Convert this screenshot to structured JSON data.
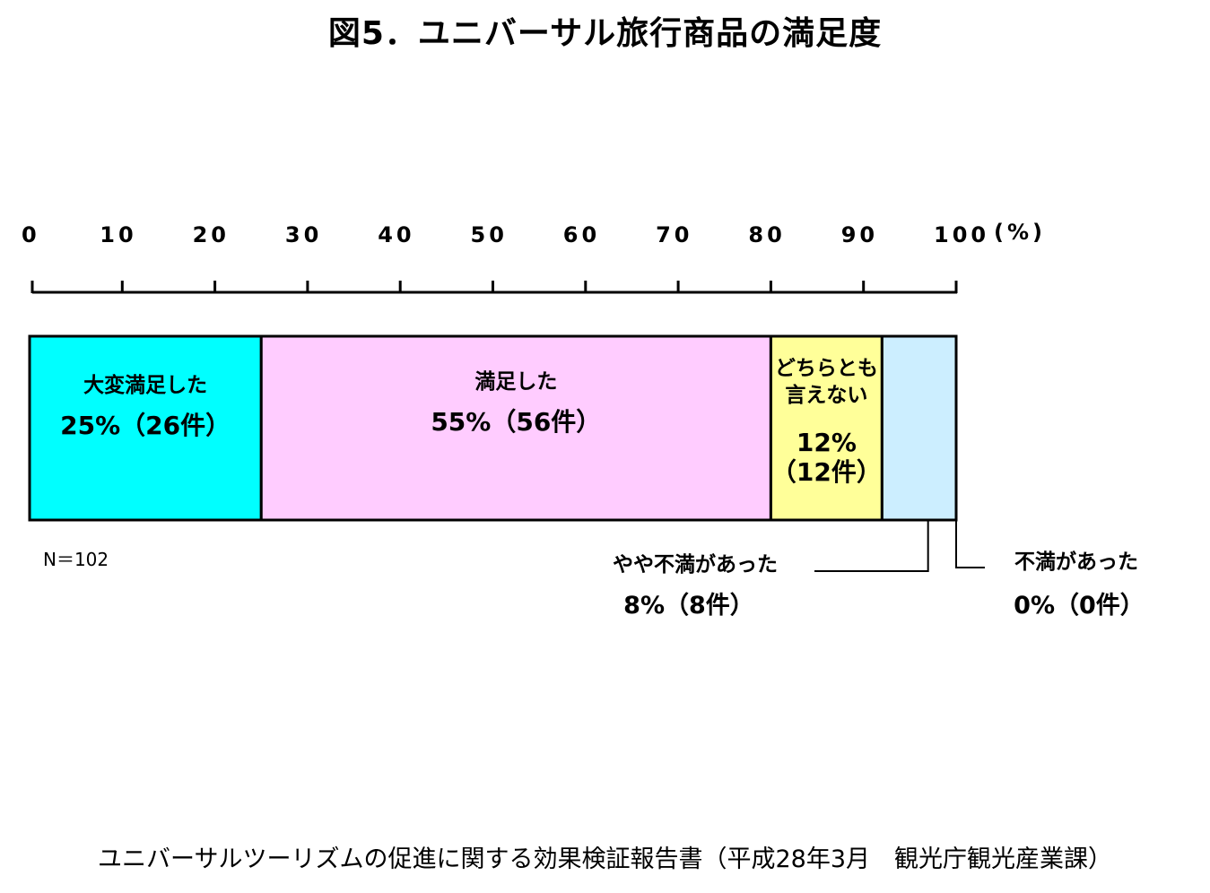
{
  "chart_data": {
    "type": "bar",
    "orientation": "horizontal-stacked-100",
    "title": "図5．ユニバーサル旅行商品の満足度",
    "ticks": [
      "0",
      "10",
      "20",
      "30",
      "40",
      "50",
      "60",
      "70",
      "80",
      "90",
      "100"
    ],
    "unit": "(%)",
    "xlim": [
      0,
      100
    ],
    "categories": [
      "大変満足した",
      "満足した",
      "どちらとも言えない",
      "やや不満があった",
      "不満があった"
    ],
    "series": [
      {
        "label": "大変満足した",
        "value": 25,
        "count_text": "25%（26件）",
        "color": "#00ffff",
        "placement": "inside"
      },
      {
        "label": "満足した",
        "value": 55,
        "count_text": "55%（56件）",
        "color": "#ffccff",
        "placement": "inside"
      },
      {
        "label_lines": [
          "どちらとも",
          "言えない"
        ],
        "label": "どちらとも言えない",
        "value": 12,
        "count_lines": [
          "12%",
          "（12件）"
        ],
        "color": "#ffff99",
        "placement": "inside"
      },
      {
        "label": "やや不満があった",
        "value": 8,
        "count_text": "8%（8件）",
        "color": "#cceeff",
        "placement": "outside"
      },
      {
        "label": "不満があった",
        "value": 0,
        "count_text": "0%（0件）",
        "color": "#ffffff",
        "placement": "outside"
      }
    ],
    "note": "N＝102",
    "grid": false,
    "legend": "none"
  },
  "source": "ユニバーサルツーリズムの促進に関する効果検証報告書（平成28年3月　観光庁観光産業課）"
}
